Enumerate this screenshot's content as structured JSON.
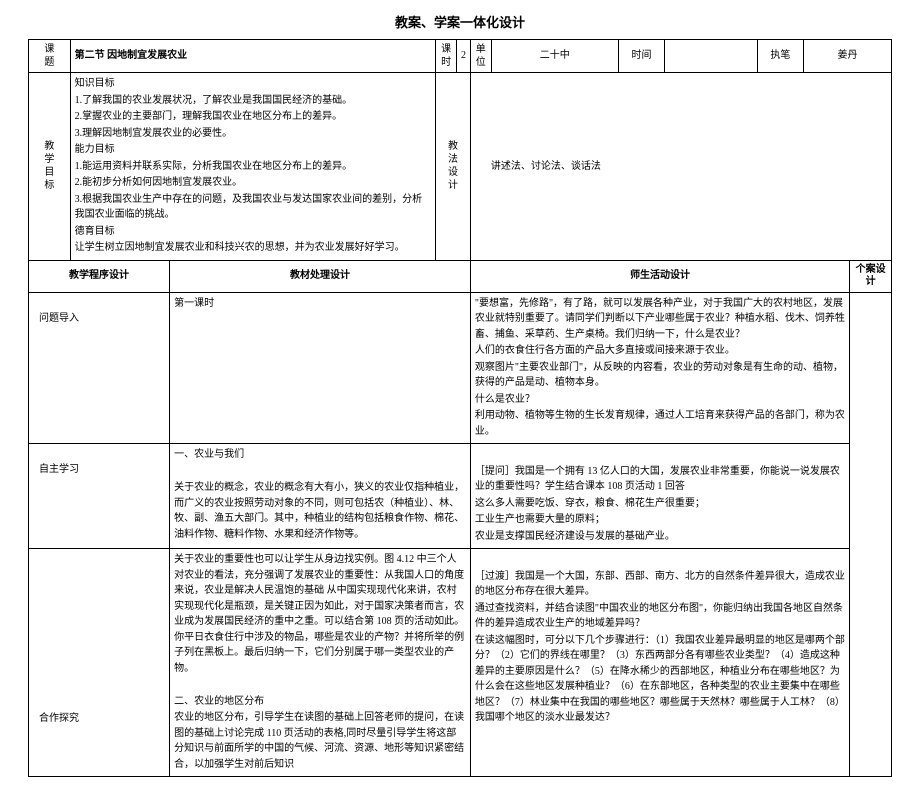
{
  "title": "教案、学案一体化设计",
  "header": {
    "labels": {
      "topic": "课题",
      "hours": "课时",
      "unit": "单位",
      "time": "时间",
      "author": "执笔"
    },
    "topic": "第二节 因地制宜发展农业",
    "hours": "2",
    "unit": "二十中",
    "time": "",
    "author": "姜丹"
  },
  "goals": {
    "left_label": "教学目标",
    "knowledge_h": "知识目标",
    "k1": "1.了解我国的农业发展状况，了解农业是我国国民经济的基础。",
    "k2": "2.掌握农业的主要部门，理解我国农业在地区分布上的差异。",
    "k3": "3.理解因地制宜发展农业的必要性。",
    "ability_h": "能力目标",
    "a1": "1.能运用资料并联系实际，分析我国农业在地区分布上的差异。",
    "a2": "2.能初步分析如何因地制宜发展农业。",
    "a3": "3.根据我国农业生产中存在的问题，及我国农业与发达国家农业间的差别，分析我国农业面临的挑战。",
    "moral_h": "德育目标",
    "m1": "让学生树立因地制宜发展农业和科技兴农的思想，并为农业发展好好学习。",
    "method_label": "教法设计",
    "method": "讲述法、讨论法、谈话法"
  },
  "section_heads": {
    "c1": "教学程序设计",
    "c2": "教材处理设计",
    "c3": "师生活动设计",
    "c4": "个案设计"
  },
  "rows": {
    "r1_label": "问题导入",
    "r1_mat_a": "第一课时",
    "r1_act_a": "\"要想富，先修路\"，有了路，就可以发展各种产业，对于我国广大的农村地区，发展农业就特别重要了。请同学们判断以下产业哪些属于农业？种植水稻、伐木、饲养牲畜、捕鱼、采草药、生产桌椅。我们归纳一下，什么是农业？",
    "r1_act_b": "人们的衣食住行各方面的产品大多直接或间接来源于农业。",
    "r1_act_c": "观察图片\"主要农业部门\"，从反映的内容看，农业的劳动对象是有生命的动、植物，获得的产品是动、植物本身。",
    "r1_act_d": "什么是农业？",
    "r1_act_e": "利用动物、植物等生物的生长发育规律，通过人工培育来获得产品的各部门，称为农业。",
    "r2_label": "自主学习",
    "r2_mat_a": "一、农业与我们",
    "r2_mat_b": "关于农业的概念，农业的概念有大有小，狭义的农业仅指种植业，而广义的农业按照劳动对象的不同，则可包括农（种植业）、林、牧、副、渔五大部门。其中，种植业的结构包括粮食作物、棉花、油料作物、糖料作物、水果和经济作物等。",
    "r2_act_a": "［提问］我国是一个拥有 13 亿人口的大国，发展农业非常重要，你能说一说发展农业的重要性吗？学生结合课本 108 页活动 1 回答",
    "r2_act_b": "这么多人需要吃饭、穿衣，粮食、棉花生产很重要；",
    "r2_act_c": "工业生产也需要大量的原料；",
    "r2_act_d": "农业是支撑国民经济建设与发展的基础产业。",
    "r3_label": "合作探究",
    "r3_mat_a": "关于农业的重要性也可以让学生从身边找实例。图 4.12 中三个人对农业的看法，充分强调了发展农业的重要性：从我国人口的角度来说，农业是解决人民温饱的基础 从中国实现现代化来讲，农村实现现代化是瓶颈，是关键正因为如此，对于国家决策者而言，农业成为发展国民经济的重中之重。可以结合第 108 页的活动如此。你平日衣食住行中涉及的物品，哪些是农业的产物？并将所举的例子列在黑板上。最后归纳一下，它们分别属于哪一类型农业的产物。",
    "r3_mat_b": "二、农业的地区分布",
    "r3_mat_c": "农业的地区分布，引导学生在读图的基础上回答老师的提问，在读图的基础上讨论完成 110 页活动的表格,同时尽量引导学生将这部分知识与前面所学的中国的气候、河流、资源、地形等知识紧密结合，以加强学生对前后知识",
    "r3_act_a": "［过渡］我国是一个大国，东部、西部、南方、北方的自然条件差异很大，造成农业的地区分布存在很大差异。",
    "r3_act_b": "通过查找资料，并结合读图\"中国农业的地区分布图\"，你能归纳出我国各地区自然条件的差异造成农业生产的地域差异吗？",
    "r3_act_c": "在读这幅图时，可分以下几个步骤进行：（1）我国农业差异最明显的地区是哪两个部分？（2）它们的界线在哪里？（3）东西两部分各有哪些农业类型？（4）造成这种差异的主要原因是什么？（5）在降水稀少的西部地区，种植业分布在哪些地区？为什么会在这些地区发展种植业？（6）在东部地区，各种类型的农业主要集中在哪些地区？（7）林业集中在我国的哪些地区？哪些属于天然林？哪些属于人工林？（8）我国哪个地区的淡水业最发达？"
  }
}
